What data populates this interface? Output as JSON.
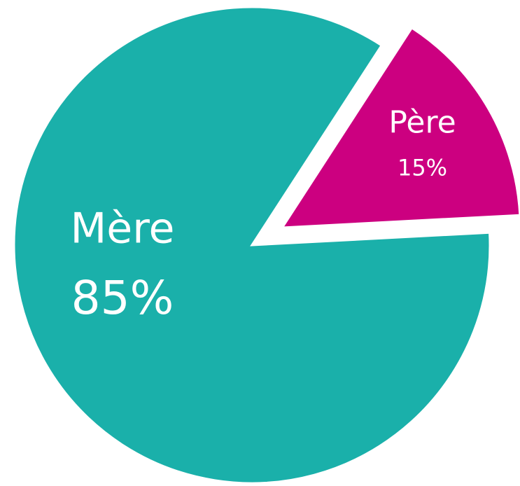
{
  "chart_data": {
    "type": "pie",
    "categories": [
      "Mère",
      "Père"
    ],
    "values": [
      85,
      15
    ],
    "value_labels": [
      "85%",
      "15%"
    ],
    "colors": [
      "#1ab0aa",
      "#cc0080"
    ]
  }
}
